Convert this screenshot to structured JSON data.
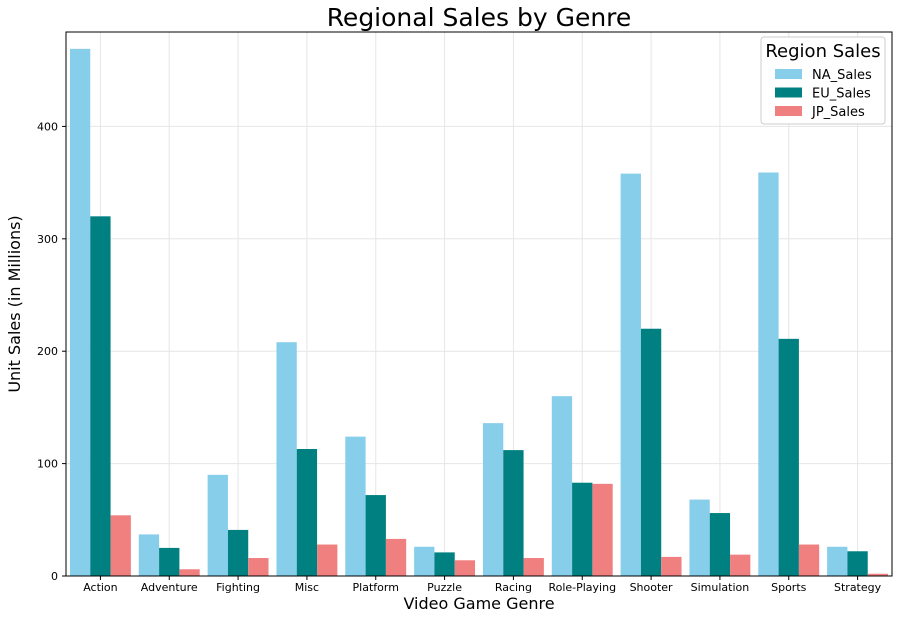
{
  "chart_data": {
    "type": "bar",
    "title": "Regional Sales by Genre",
    "xlabel": "Video Game Genre",
    "ylabel": "Unit Sales (in Millions)",
    "categories": [
      "Action",
      "Adventure",
      "Fighting",
      "Misc",
      "Platform",
      "Puzzle",
      "Racing",
      "Role-Playing",
      "Shooter",
      "Simulation",
      "Sports",
      "Strategy"
    ],
    "series": [
      {
        "name": "NA_Sales",
        "color": "#87ceeb",
        "values": [
          469,
          37,
          90,
          208,
          124,
          26,
          136,
          160,
          358,
          68,
          359,
          26
        ]
      },
      {
        "name": "EU_Sales",
        "color": "#008080",
        "values": [
          320,
          25,
          41,
          113,
          72,
          21,
          112,
          83,
          220,
          56,
          211,
          22
        ]
      },
      {
        "name": "JP_Sales",
        "color": "#f08080",
        "values": [
          54,
          6,
          16,
          28,
          33,
          14,
          16,
          82,
          17,
          19,
          28,
          2
        ]
      }
    ],
    "yticks": [
      0,
      100,
      200,
      300,
      400
    ],
    "ylim": [
      0,
      484
    ],
    "grid": true,
    "legend": {
      "title": "Region Sales",
      "position": "top-right"
    }
  }
}
